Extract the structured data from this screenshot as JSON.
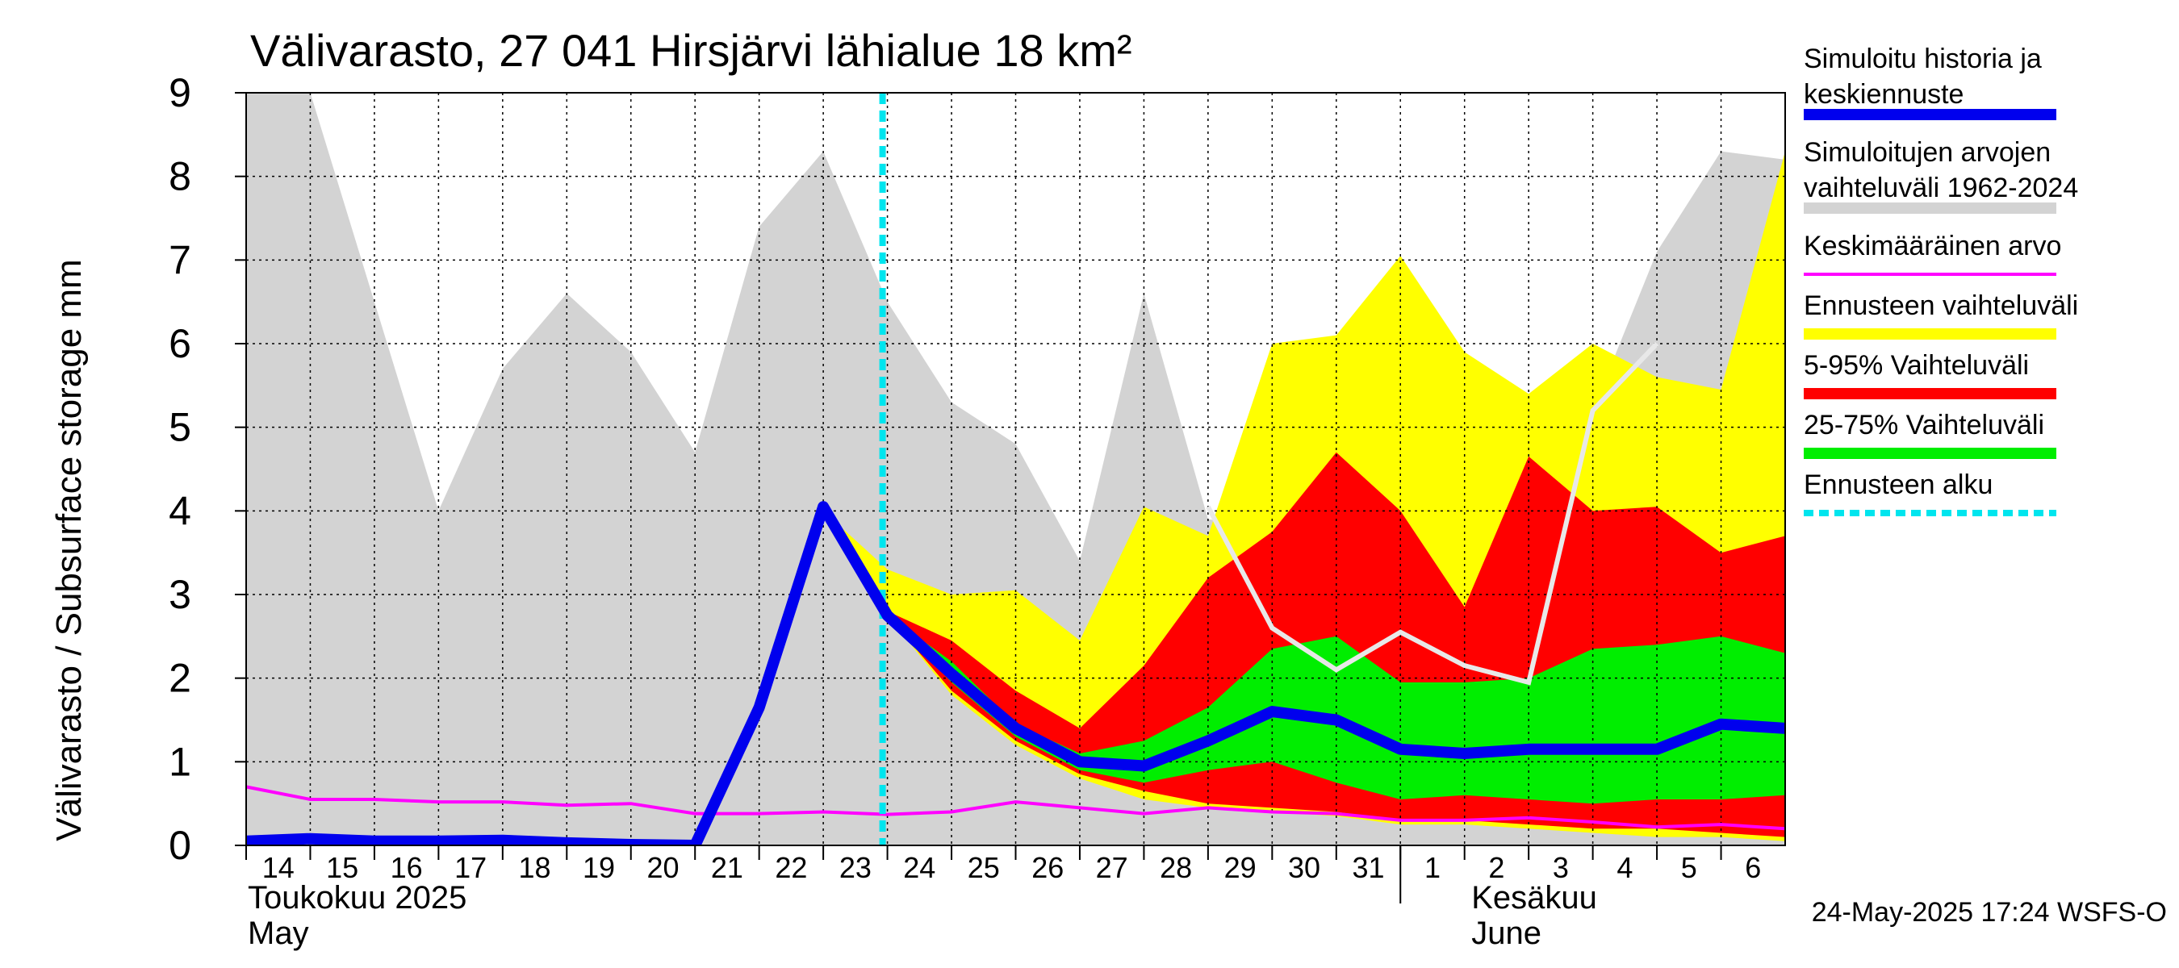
{
  "chart_data": {
    "type": "area",
    "title": "Välivarasto, 27 041 Hirsjärvi lähialue 18 km²",
    "ylabel": "Välivarasto / Subsurface storage  mm",
    "ylim": [
      0,
      9
    ],
    "yticks": [
      0,
      1,
      2,
      3,
      4,
      5,
      6,
      7,
      8,
      9
    ],
    "x_start_day": 14,
    "x_end_day": 38,
    "x_ticks": [
      {
        "day": 14,
        "label": "14"
      },
      {
        "day": 15,
        "label": "15"
      },
      {
        "day": 16,
        "label": "16"
      },
      {
        "day": 17,
        "label": "17"
      },
      {
        "day": 18,
        "label": "18"
      },
      {
        "day": 19,
        "label": "19"
      },
      {
        "day": 20,
        "label": "20"
      },
      {
        "day": 21,
        "label": "21"
      },
      {
        "day": 22,
        "label": "22"
      },
      {
        "day": 23,
        "label": "23"
      },
      {
        "day": 24,
        "label": "24"
      },
      {
        "day": 25,
        "label": "25"
      },
      {
        "day": 26,
        "label": "26"
      },
      {
        "day": 27,
        "label": "27"
      },
      {
        "day": 28,
        "label": "28"
      },
      {
        "day": 29,
        "label": "29"
      },
      {
        "day": 30,
        "label": "30"
      },
      {
        "day": 31,
        "label": "31"
      },
      {
        "day": 32,
        "label": "1"
      },
      {
        "day": 33,
        "label": "2"
      },
      {
        "day": 34,
        "label": "3"
      },
      {
        "day": 35,
        "label": "4"
      },
      {
        "day": 36,
        "label": "5"
      },
      {
        "day": 37,
        "label": "6"
      }
    ],
    "month_labels": [
      {
        "day": 14,
        "line1": "Toukokuu  2025",
        "line2": "May"
      },
      {
        "day": 32,
        "line1": "Kesäkuu",
        "line2": "June"
      }
    ],
    "month_boundary_day": 32,
    "forecast_start_day": 24,
    "historical_range": {
      "x": [
        14,
        15,
        16,
        17,
        18,
        19,
        20,
        21,
        22,
        23,
        24,
        25,
        26,
        27,
        28,
        29,
        30,
        31,
        32,
        33,
        34,
        35,
        36,
        37,
        38
      ],
      "lower": [
        0,
        0,
        0,
        0,
        0,
        0,
        0,
        0,
        0,
        0,
        0,
        0,
        0,
        0,
        0,
        0,
        0,
        0,
        0,
        0,
        0,
        0,
        0,
        0,
        0
      ],
      "upper": [
        9.0,
        9.0,
        6.5,
        4.0,
        5.7,
        6.6,
        5.9,
        4.7,
        7.4,
        8.3,
        6.5,
        5.3,
        4.8,
        3.4,
        6.6,
        3.9,
        3.8,
        3.5,
        3.3,
        3.3,
        3.3,
        5.2,
        7.1,
        8.3,
        8.2
      ]
    },
    "forecast_range": {
      "x": [
        23,
        24,
        25,
        26,
        27,
        28,
        29,
        30,
        31,
        32,
        33,
        34,
        35,
        36,
        37,
        38
      ],
      "lower": [
        4.0,
        2.75,
        1.8,
        1.2,
        0.8,
        0.55,
        0.45,
        0.4,
        0.35,
        0.25,
        0.25,
        0.2,
        0.15,
        0.1,
        0.1,
        0.05
      ],
      "upper": [
        4.0,
        3.3,
        3.0,
        3.05,
        2.45,
        4.05,
        3.7,
        6.0,
        6.1,
        7.05,
        5.9,
        5.4,
        6.0,
        5.6,
        5.45,
        8.3
      ]
    },
    "band_5_95": {
      "x": [
        24,
        25,
        26,
        27,
        28,
        29,
        30,
        31,
        32,
        33,
        34,
        35,
        36,
        37,
        38
      ],
      "lower": [
        2.75,
        1.85,
        1.25,
        0.85,
        0.65,
        0.5,
        0.45,
        0.4,
        0.3,
        0.3,
        0.25,
        0.2,
        0.2,
        0.15,
        0.1
      ],
      "upper": [
        2.8,
        2.45,
        1.85,
        1.4,
        2.15,
        3.2,
        3.75,
        4.7,
        4.0,
        2.85,
        4.65,
        4.0,
        4.05,
        3.5,
        3.7
      ]
    },
    "band_25_75": {
      "x": [
        24,
        25,
        26,
        27,
        28,
        29,
        30,
        31,
        32,
        33,
        34,
        35,
        36,
        37,
        38
      ],
      "lower": [
        2.75,
        1.95,
        1.3,
        0.9,
        0.75,
        0.9,
        1.0,
        0.75,
        0.55,
        0.6,
        0.55,
        0.5,
        0.55,
        0.55,
        0.6
      ],
      "upper": [
        2.75,
        2.2,
        1.45,
        1.1,
        1.25,
        1.65,
        2.35,
        2.5,
        1.95,
        1.95,
        2.0,
        2.35,
        2.4,
        2.5,
        2.3
      ]
    },
    "series": [
      {
        "name": "Simuloitu historia ja keskiennuste",
        "color": "#0000ee",
        "x": [
          14,
          15,
          16,
          17,
          18,
          19,
          20,
          21,
          22,
          23,
          24,
          25,
          26,
          27,
          28,
          29,
          30,
          31,
          32,
          33,
          34,
          35,
          36,
          37,
          38
        ],
        "values": [
          0.05,
          0.08,
          0.05,
          0.05,
          0.06,
          0.03,
          0.01,
          0.0,
          1.65,
          4.05,
          2.75,
          2.05,
          1.4,
          1.0,
          0.95,
          1.25,
          1.6,
          1.5,
          1.15,
          1.1,
          1.15,
          1.15,
          1.15,
          1.45,
          1.4
        ]
      },
      {
        "name": "Keskimääräinen arvo",
        "color": "#ff00ff",
        "x": [
          14,
          15,
          16,
          17,
          18,
          19,
          20,
          21,
          22,
          23,
          24,
          25,
          26,
          27,
          28,
          29,
          30,
          31,
          32,
          33,
          34,
          35,
          36,
          37,
          38
        ],
        "values": [
          0.7,
          0.55,
          0.55,
          0.52,
          0.52,
          0.48,
          0.5,
          0.38,
          0.38,
          0.4,
          0.37,
          0.4,
          0.52,
          0.45,
          0.38,
          0.45,
          0.4,
          0.38,
          0.3,
          0.3,
          0.33,
          0.28,
          0.22,
          0.25,
          0.2
        ]
      }
    ],
    "light_trace": {
      "color": "#e8e8e8",
      "x": [
        29,
        30,
        31,
        32,
        33,
        34,
        35,
        36
      ],
      "values": [
        4.05,
        2.6,
        2.1,
        2.55,
        2.15,
        1.95,
        5.2,
        6.0
      ]
    },
    "legend": {
      "placement": "right",
      "items": [
        {
          "line1": "Simuloitu historia ja",
          "line2": "keskiennuste",
          "color": "#0000ee",
          "style": "thick"
        },
        {
          "line1": "Simuloitujen arvojen",
          "line2": "vaihteluväli 1962-2024",
          "color": "#d3d3d3",
          "style": "thick"
        },
        {
          "line1": "Keskimääräinen arvo",
          "line2": "",
          "color": "#ff00ff",
          "style": "thin"
        },
        {
          "line1": "Ennusteen vaihteluväli",
          "line2": "",
          "color": "#ffff00",
          "style": "thick"
        },
        {
          "line1": "5-95% Vaihteluväli",
          "line2": "",
          "color": "#ff0000",
          "style": "thick"
        },
        {
          "line1": "25-75% Vaihteluväli",
          "line2": "",
          "color": "#00ee00",
          "style": "thick"
        },
        {
          "line1": "Ennusteen alku",
          "line2": "",
          "color": "#00e5ee",
          "style": "dashed"
        }
      ]
    },
    "footer": "24-May-2025 17:24 WSFS-O",
    "grid": true
  }
}
